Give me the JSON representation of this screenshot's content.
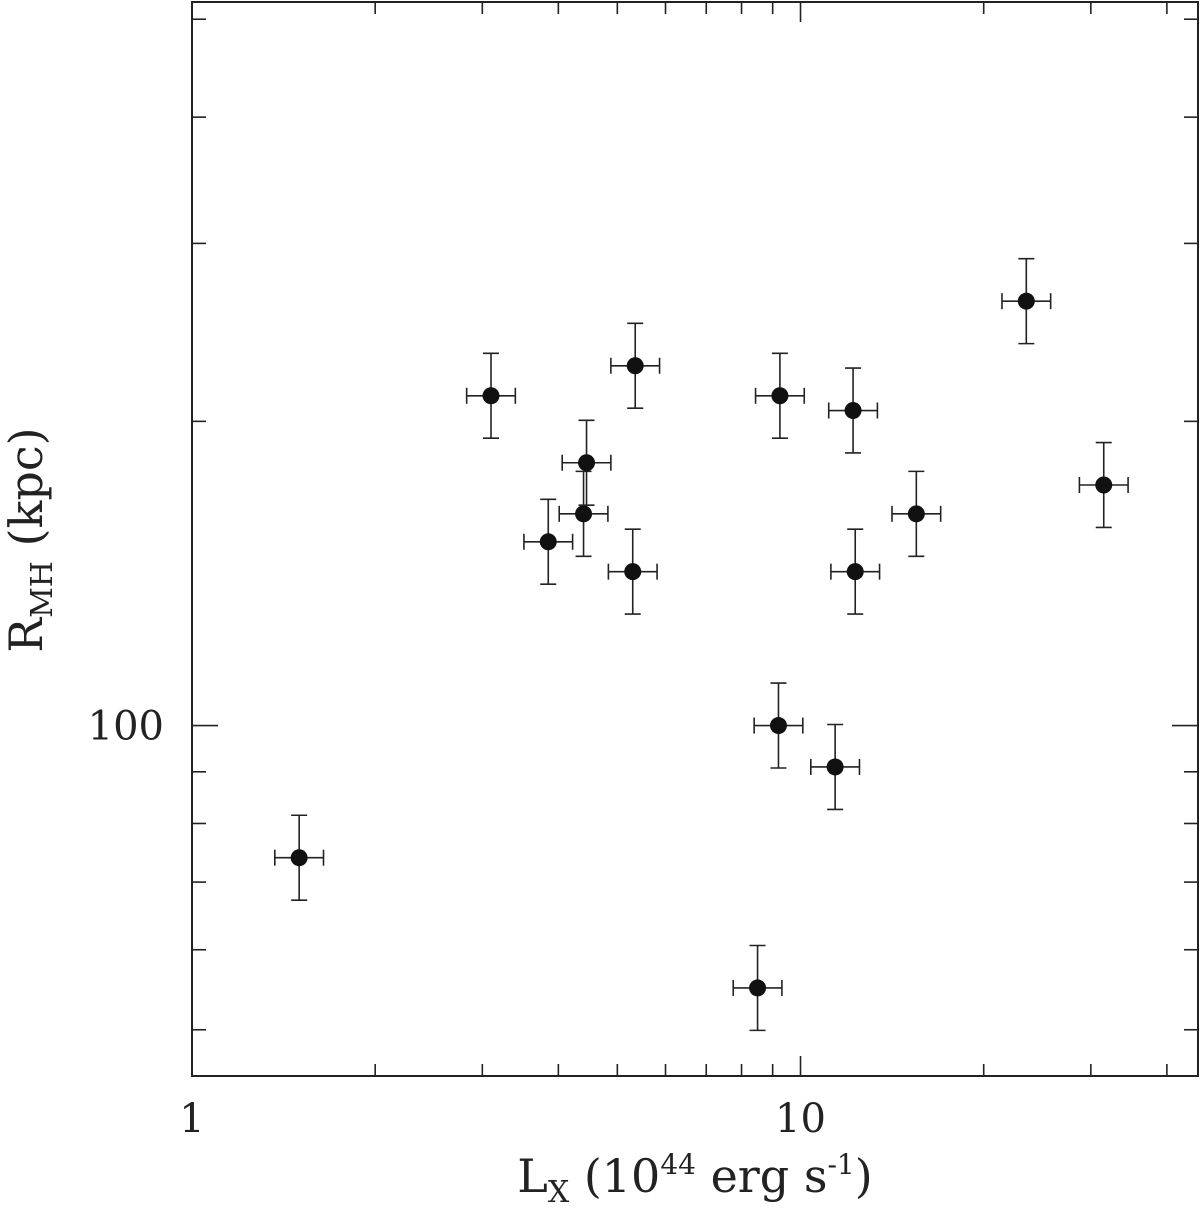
{
  "chart_data": {
    "type": "scatter",
    "xscale": "log",
    "yscale": "log",
    "xlim": [
      1,
      45
    ],
    "ylim": [
      45,
      520
    ],
    "xlabel": {
      "main": "L",
      "sub": "X",
      "rest_before_sup": " (10",
      "sup": "44",
      "rest_mid": " erg s",
      "sup2": "-1",
      "rest_after": ")"
    },
    "ylabel": {
      "main": "R",
      "sub": "MH",
      "rest": " (kpc)"
    },
    "x_tick_labels": [
      {
        "value": 1,
        "label": "1"
      },
      {
        "value": 10,
        "label": "10"
      }
    ],
    "y_tick_labels": [
      {
        "value": 100,
        "label": "100"
      }
    ],
    "x_minor_ticks": [
      2,
      3,
      4,
      5,
      6,
      7,
      8,
      9,
      20,
      30,
      40
    ],
    "y_ticks": [
      50,
      60,
      70,
      80,
      90,
      100,
      200,
      300,
      400,
      500
    ],
    "error_bar_dex": {
      "x": 0.04,
      "y": 0.042
    },
    "points": [
      {
        "x": 1.5,
        "y": 74
      },
      {
        "x": 3.1,
        "y": 212
      },
      {
        "x": 3.85,
        "y": 152
      },
      {
        "x": 4.4,
        "y": 162
      },
      {
        "x": 4.45,
        "y": 182
      },
      {
        "x": 5.3,
        "y": 142
      },
      {
        "x": 5.35,
        "y": 227
      },
      {
        "x": 8.5,
        "y": 55
      },
      {
        "x": 9.2,
        "y": 100
      },
      {
        "x": 9.25,
        "y": 212
      },
      {
        "x": 11.4,
        "y": 91
      },
      {
        "x": 12.3,
        "y": 142
      },
      {
        "x": 12.2,
        "y": 205
      },
      {
        "x": 15.5,
        "y": 162
      },
      {
        "x": 23.5,
        "y": 263
      },
      {
        "x": 31.5,
        "y": 173
      }
    ],
    "marker_color": "#111111",
    "frame_color": "#222222"
  }
}
